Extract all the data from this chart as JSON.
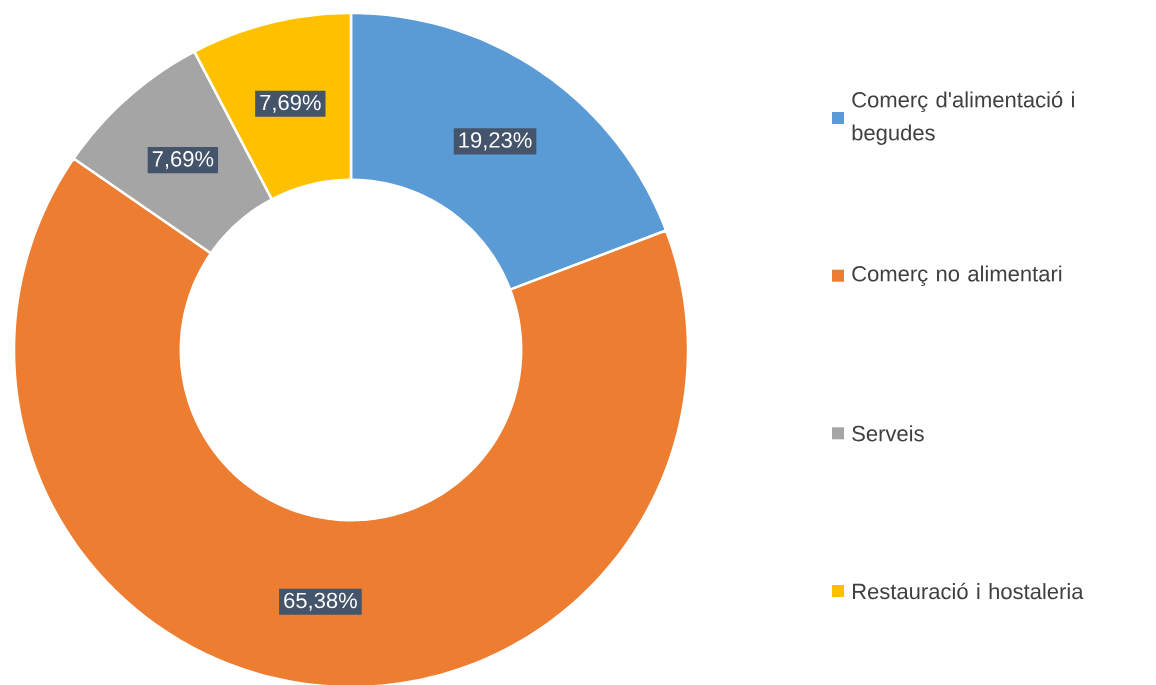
{
  "chart_data": {
    "type": "donut",
    "categories": [
      "Comerç d'alimentació i begudes",
      "Comerç no alimentari",
      "Serveis",
      "Restauració i hostaleria"
    ],
    "values": [
      19.23,
      65.38,
      7.69,
      7.69
    ],
    "colors": [
      "#5b9bd5",
      "#ed7d31",
      "#a5a5a5",
      "#ffc000"
    ],
    "value_labels": [
      "19,23%",
      "65,38%",
      "7,69%",
      "7,69%"
    ],
    "legend": "right"
  }
}
